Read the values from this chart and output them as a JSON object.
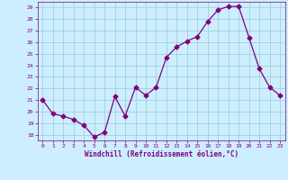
{
  "x": [
    0,
    1,
    2,
    3,
    4,
    5,
    6,
    7,
    8,
    9,
    10,
    11,
    12,
    13,
    14,
    15,
    16,
    17,
    18,
    19,
    20,
    21,
    22,
    23
  ],
  "y": [
    21.0,
    19.8,
    19.6,
    19.3,
    18.8,
    17.8,
    18.2,
    21.3,
    19.6,
    22.1,
    21.4,
    22.1,
    24.7,
    25.6,
    26.1,
    26.5,
    27.8,
    28.8,
    29.1,
    29.1,
    26.4,
    23.7,
    22.1,
    21.4
  ],
  "line_color": "#800080",
  "marker": "D",
  "marker_size": 2.5,
  "bg_color": "#cceeff",
  "grid_color": "#99cccc",
  "xlabel": "Windchill (Refroidissement éolien,°C)",
  "xlabel_color": "#800080",
  "tick_color": "#800080",
  "ylim": [
    17.5,
    29.5
  ],
  "yticks": [
    18,
    19,
    20,
    21,
    22,
    23,
    24,
    25,
    26,
    27,
    28,
    29
  ],
  "xlim": [
    -0.5,
    23.5
  ],
  "xticks": [
    0,
    1,
    2,
    3,
    4,
    5,
    6,
    7,
    8,
    9,
    10,
    11,
    12,
    13,
    14,
    15,
    16,
    17,
    18,
    19,
    20,
    21,
    22,
    23
  ]
}
